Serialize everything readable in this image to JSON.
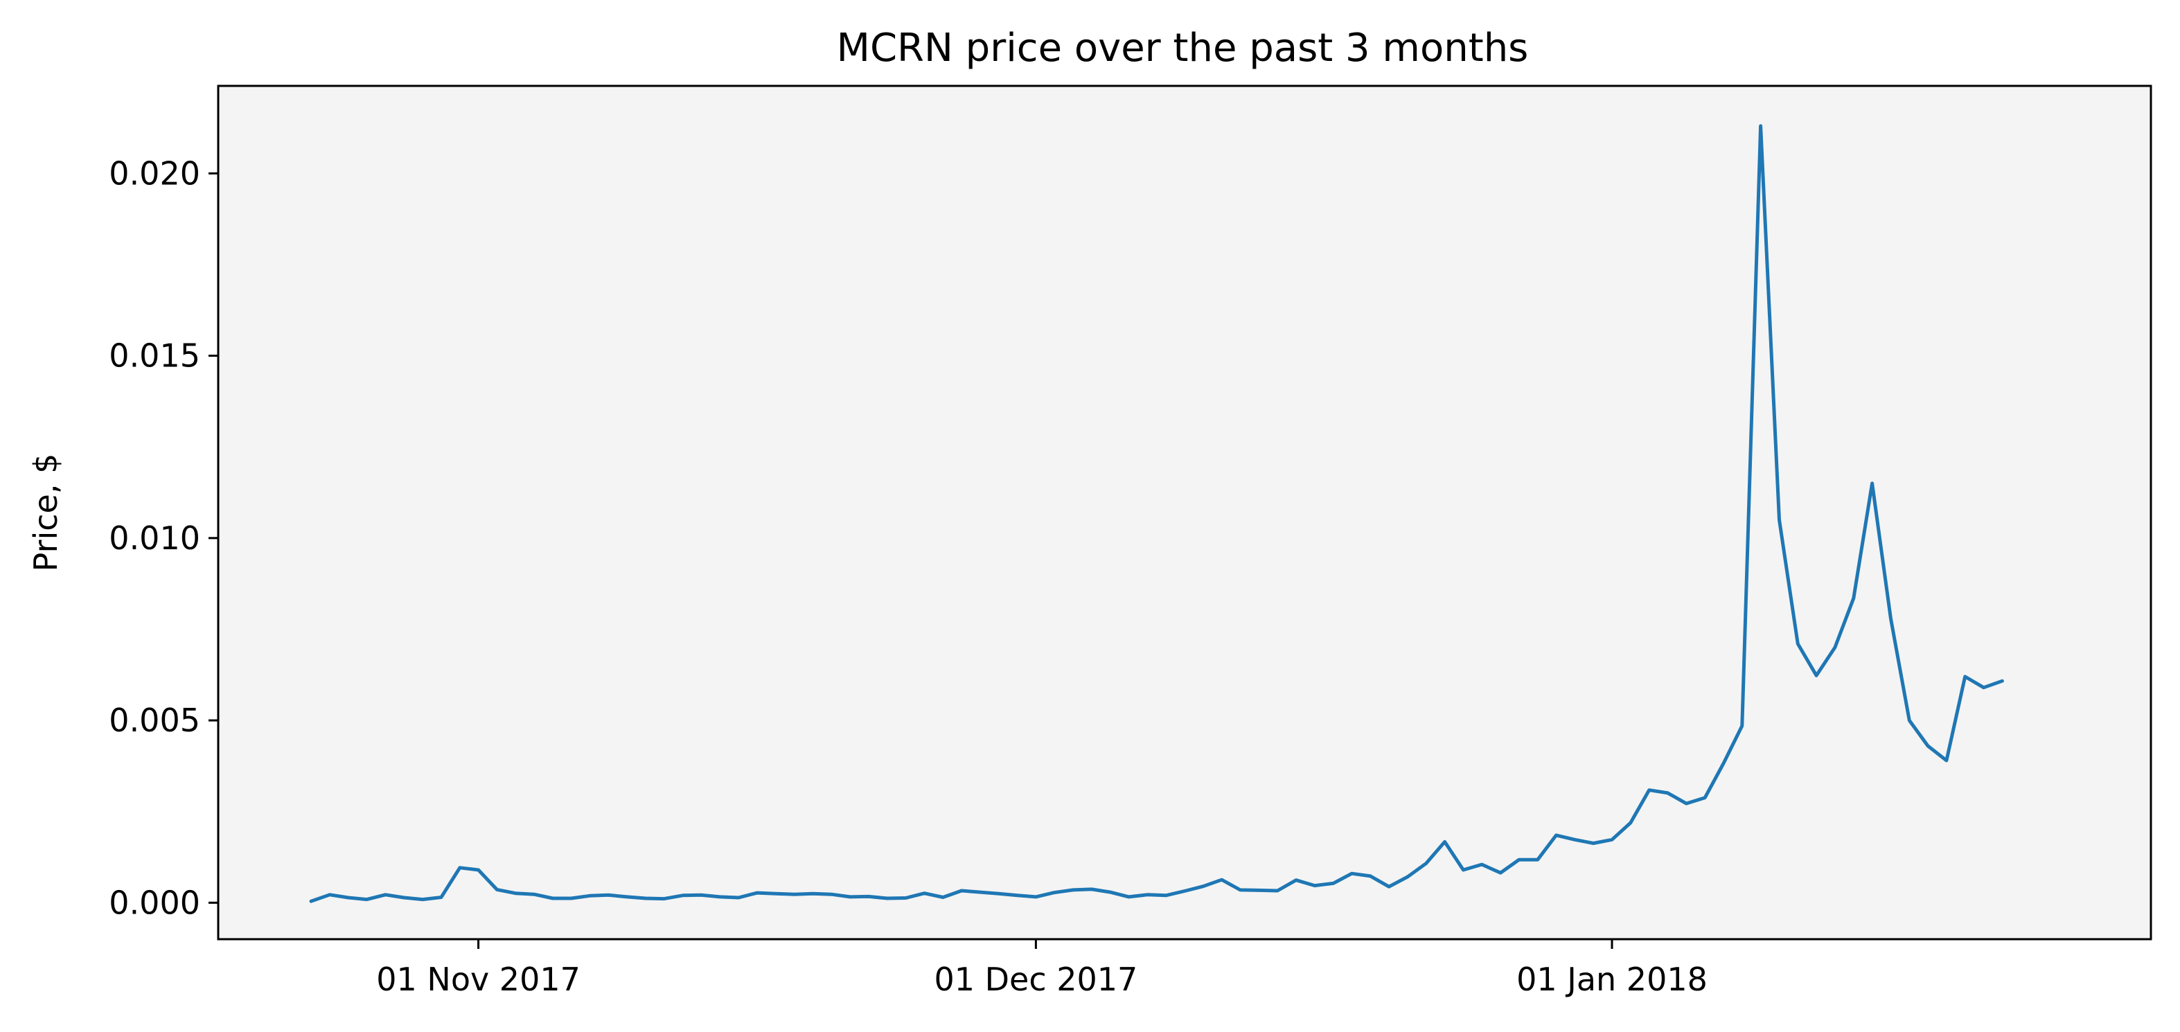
{
  "chart_data": {
    "type": "line",
    "title": "MCRN price over the past 3 months",
    "xlabel": "",
    "ylabel": "Price, $",
    "xlim": [
      "2017-10-18",
      "2018-01-30"
    ],
    "ylim": [
      -0.001,
      0.0224
    ],
    "x_ticks": [
      {
        "date": "2017-11-01",
        "label": "01 Nov 2017"
      },
      {
        "date": "2017-12-01",
        "label": "01 Dec 2017"
      },
      {
        "date": "2018-01-01",
        "label": "01 Jan 2018"
      }
    ],
    "y_ticks": [
      {
        "value": 0.0,
        "label": "0.000"
      },
      {
        "value": 0.005,
        "label": "0.005"
      },
      {
        "value": 0.01,
        "label": "0.010"
      },
      {
        "value": 0.015,
        "label": "0.015"
      },
      {
        "value": 0.02,
        "label": "0.020"
      }
    ],
    "grid": false,
    "background": "#f4f4f4",
    "series": [
      {
        "color": "#1f77b4",
        "points": [
          [
            "2017-10-23",
            4e-05
          ],
          [
            "2017-10-24",
            0.00022
          ],
          [
            "2017-10-25",
            0.00014
          ],
          [
            "2017-10-26",
            9e-05
          ],
          [
            "2017-10-27",
            0.00022
          ],
          [
            "2017-10-28",
            0.00014
          ],
          [
            "2017-10-29",
            9e-05
          ],
          [
            "2017-10-30",
            0.00015
          ],
          [
            "2017-10-31",
            0.00096
          ],
          [
            "2017-11-01",
            0.0009
          ],
          [
            "2017-11-02",
            0.00036
          ],
          [
            "2017-11-03",
            0.00026
          ],
          [
            "2017-11-04",
            0.00023
          ],
          [
            "2017-11-05",
            0.00012
          ],
          [
            "2017-11-06",
            0.00012
          ],
          [
            "2017-11-07",
            0.00019
          ],
          [
            "2017-11-08",
            0.00021
          ],
          [
            "2017-11-09",
            0.00016
          ],
          [
            "2017-11-10",
            0.00012
          ],
          [
            "2017-11-11",
            0.00011
          ],
          [
            "2017-11-12",
            0.0002
          ],
          [
            "2017-11-13",
            0.00021
          ],
          [
            "2017-11-14",
            0.00016
          ],
          [
            "2017-11-15",
            0.00014
          ],
          [
            "2017-11-16",
            0.00027
          ],
          [
            "2017-11-17",
            0.00025
          ],
          [
            "2017-11-18",
            0.00023
          ],
          [
            "2017-11-19",
            0.00025
          ],
          [
            "2017-11-20",
            0.00023
          ],
          [
            "2017-11-21",
            0.00016
          ],
          [
            "2017-11-22",
            0.00017
          ],
          [
            "2017-11-23",
            0.00012
          ],
          [
            "2017-11-24",
            0.00013
          ],
          [
            "2017-11-25",
            0.00026
          ],
          [
            "2017-11-26",
            0.00015
          ],
          [
            "2017-11-27",
            0.00033
          ],
          [
            "2017-11-28",
            0.00029
          ],
          [
            "2017-11-29",
            0.00025
          ],
          [
            "2017-11-30",
            0.0002
          ],
          [
            "2017-12-01",
            0.00016
          ],
          [
            "2017-12-02",
            0.00028
          ],
          [
            "2017-12-03",
            0.00035
          ],
          [
            "2017-12-04",
            0.00037
          ],
          [
            "2017-12-05",
            0.00029
          ],
          [
            "2017-12-06",
            0.00016
          ],
          [
            "2017-12-07",
            0.00022
          ],
          [
            "2017-12-08",
            0.0002
          ],
          [
            "2017-12-09",
            0.00032
          ],
          [
            "2017-12-10",
            0.00045
          ],
          [
            "2017-12-11",
            0.00063
          ],
          [
            "2017-12-12",
            0.00035
          ],
          [
            "2017-12-13",
            0.00034
          ],
          [
            "2017-12-14",
            0.00033
          ],
          [
            "2017-12-15",
            0.00062
          ],
          [
            "2017-12-16",
            0.00047
          ],
          [
            "2017-12-17",
            0.00053
          ],
          [
            "2017-12-18",
            0.0008
          ],
          [
            "2017-12-19",
            0.00073
          ],
          [
            "2017-12-20",
            0.00044
          ],
          [
            "2017-12-21",
            0.00071
          ],
          [
            "2017-12-22",
            0.00108
          ],
          [
            "2017-12-23",
            0.00167
          ],
          [
            "2017-12-24",
            0.0009
          ],
          [
            "2017-12-25",
            0.00105
          ],
          [
            "2017-12-26",
            0.00082
          ],
          [
            "2017-12-27",
            0.00118
          ],
          [
            "2017-12-28",
            0.00118
          ],
          [
            "2017-12-29",
            0.00185
          ],
          [
            "2017-12-30",
            0.00173
          ],
          [
            "2017-12-31",
            0.00163
          ],
          [
            "2018-01-01",
            0.00173
          ],
          [
            "2018-01-02",
            0.00219
          ],
          [
            "2018-01-03",
            0.00309
          ],
          [
            "2018-01-04",
            0.00301
          ],
          [
            "2018-01-05",
            0.00272
          ],
          [
            "2018-01-06",
            0.00288
          ],
          [
            "2018-01-07",
            0.00382
          ],
          [
            "2018-01-08",
            0.00485
          ],
          [
            "2018-01-09",
            0.0213
          ],
          [
            "2018-01-10",
            0.0105
          ],
          [
            "2018-01-11",
            0.0071
          ],
          [
            "2018-01-12",
            0.00623
          ],
          [
            "2018-01-13",
            0.007
          ],
          [
            "2018-01-14",
            0.00835
          ],
          [
            "2018-01-15",
            0.0115
          ],
          [
            "2018-01-16",
            0.0078
          ],
          [
            "2018-01-17",
            0.005
          ],
          [
            "2018-01-18",
            0.0043
          ],
          [
            "2018-01-19",
            0.0039
          ],
          [
            "2018-01-20",
            0.0062
          ],
          [
            "2018-01-21",
            0.0059
          ],
          [
            "2018-01-22",
            0.00608
          ]
        ]
      }
    ]
  }
}
